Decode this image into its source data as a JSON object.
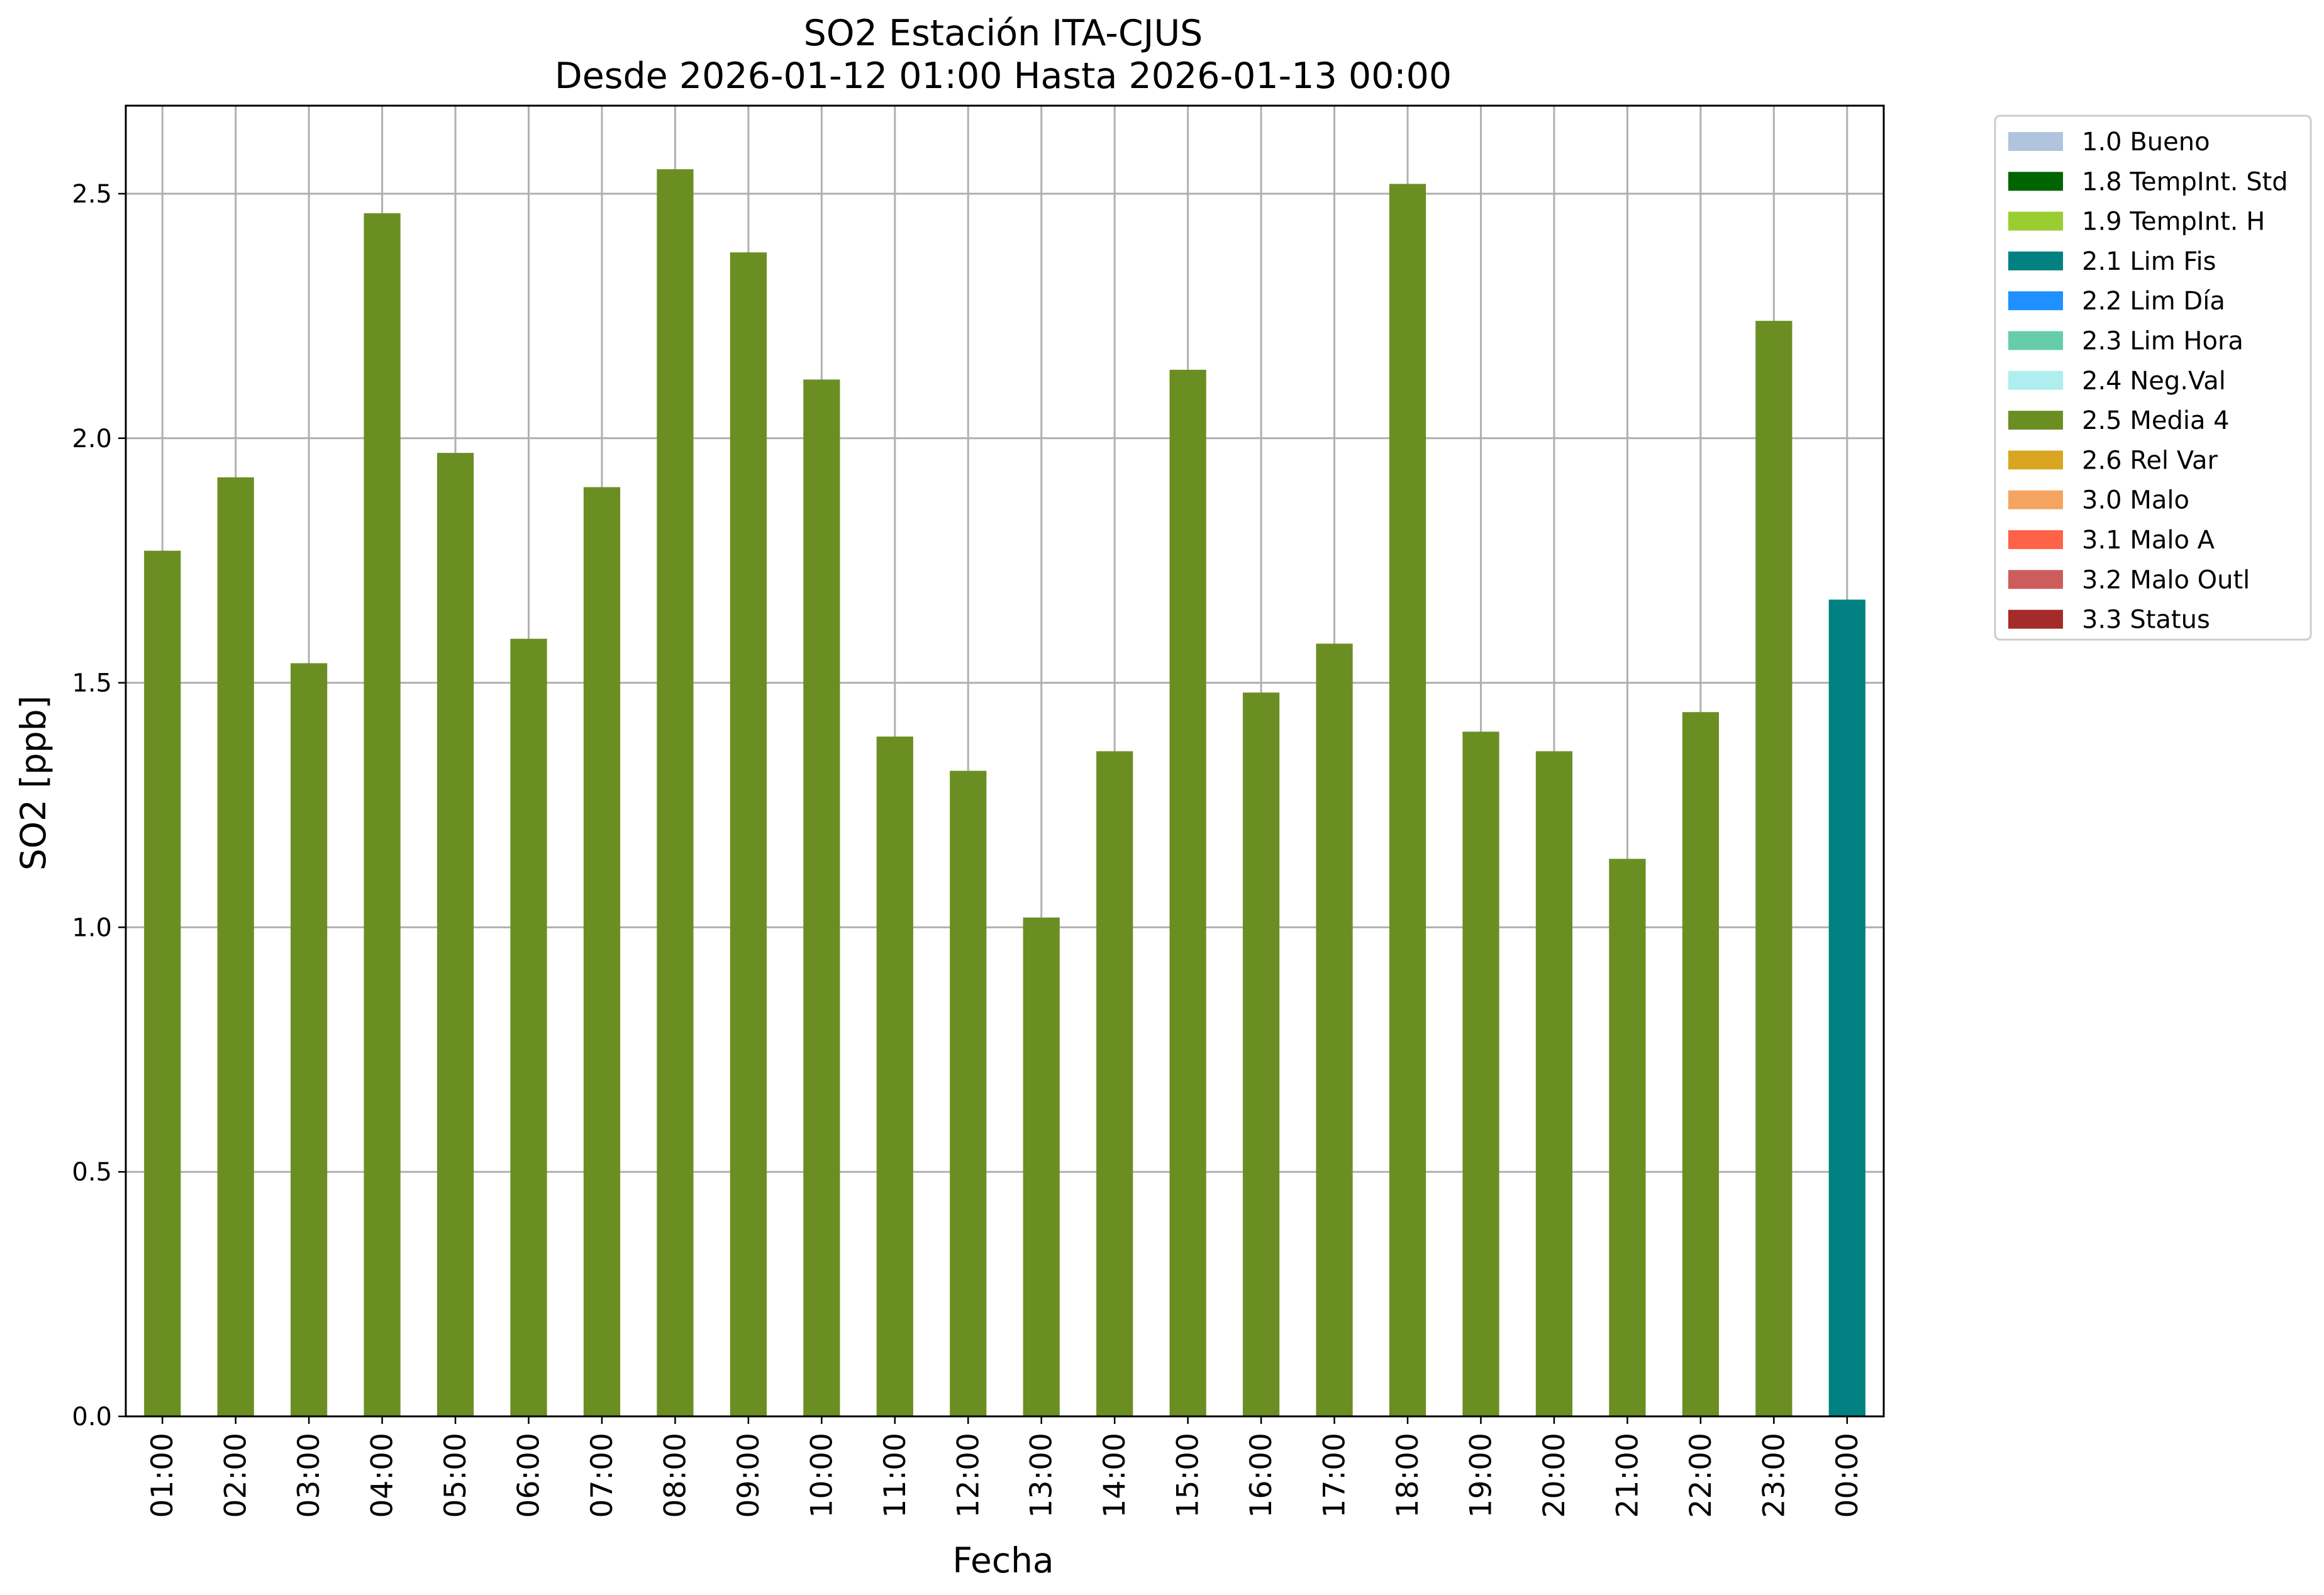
{
  "chart_data": {
    "type": "bar",
    "title": [
      "SO2 Estación ITA-CJUS",
      "Desde 2026-01-12 01:00 Hasta 2026-01-13 00:00"
    ],
    "xlabel": "Fecha",
    "ylabel": "SO2 [ppb]",
    "ylim": [
      0,
      2.68
    ],
    "yticks": [
      "0.0",
      "0.5",
      "1.0",
      "1.5",
      "2.0",
      "2.5"
    ],
    "grid": true,
    "legend_position": "outside-top-right",
    "categories": [
      "01:00",
      "02:00",
      "03:00",
      "04:00",
      "05:00",
      "06:00",
      "07:00",
      "08:00",
      "09:00",
      "10:00",
      "11:00",
      "12:00",
      "13:00",
      "14:00",
      "15:00",
      "16:00",
      "17:00",
      "18:00",
      "19:00",
      "20:00",
      "21:00",
      "22:00",
      "23:00",
      "00:00"
    ],
    "values": [
      1.77,
      1.92,
      1.54,
      2.46,
      1.97,
      1.59,
      1.9,
      2.55,
      2.38,
      2.12,
      1.39,
      1.32,
      1.02,
      1.36,
      2.14,
      1.48,
      1.58,
      2.52,
      1.4,
      1.36,
      1.14,
      1.44,
      2.24,
      1.67
    ],
    "flags": [
      "2.5 Media 4",
      "2.5 Media 4",
      "2.5 Media 4",
      "2.5 Media 4",
      "2.5 Media 4",
      "2.5 Media 4",
      "2.5 Media 4",
      "2.5 Media 4",
      "2.5 Media 4",
      "2.5 Media 4",
      "2.5 Media 4",
      "2.5 Media 4",
      "2.5 Media 4",
      "2.5 Media 4",
      "2.5 Media 4",
      "2.5 Media 4",
      "2.5 Media 4",
      "2.5 Media 4",
      "2.5 Media 4",
      "2.5 Media 4",
      "2.5 Media 4",
      "2.5 Media 4",
      "2.5 Media 4",
      "2.1 Lim Fis"
    ],
    "legend": [
      {
        "label": "1.0 Bueno",
        "color": "#b0c4de"
      },
      {
        "label": "1.8 TempInt. Std",
        "color": "#006400"
      },
      {
        "label": "1.9 TempInt. H",
        "color": "#9acd32"
      },
      {
        "label": "2.1 Lim Fis",
        "color": "#008080"
      },
      {
        "label": "2.2 Lim Día",
        "color": "#1e90ff"
      },
      {
        "label": "2.3 Lim Hora",
        "color": "#66cdaa"
      },
      {
        "label": "2.4 Neg.Val",
        "color": "#afeeee"
      },
      {
        "label": "2.5 Media 4",
        "color": "#6b8e23"
      },
      {
        "label": "2.6 Rel Var",
        "color": "#daa520"
      },
      {
        "label": "3.0 Malo",
        "color": "#f4a460"
      },
      {
        "label": "3.1 Malo A",
        "color": "#ff6347"
      },
      {
        "label": "3.2 Malo Outl",
        "color": "#cd5c5c"
      },
      {
        "label": "3.3 Status",
        "color": "#a52a2a"
      }
    ]
  }
}
